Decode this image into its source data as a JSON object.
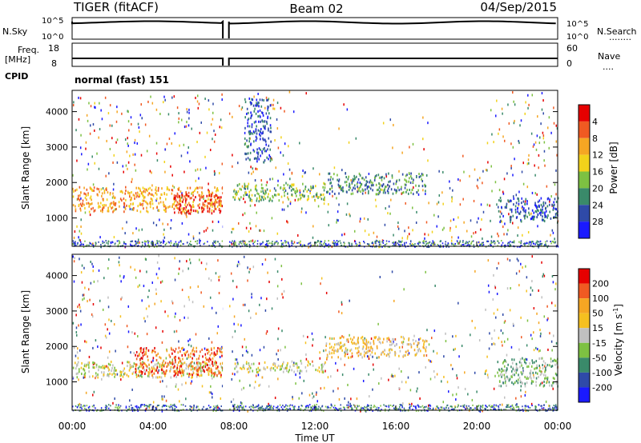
{
  "header": {
    "radar": "TIGER (fitACF)",
    "beam": "Beam 02",
    "date": "04/Sep/2015"
  },
  "nsky_panel": {
    "left_label": "N.Sky",
    "left_ticks": [
      "10^5",
      "10^0"
    ],
    "right_ticks": [
      "10^5",
      "10^0"
    ],
    "right_label": "N.Search",
    "right_legend": "........"
  },
  "freq_panel": {
    "left_label_line1": "Freq.",
    "left_label_line2": "[MHz]",
    "left_ticks": [
      "18",
      "8"
    ],
    "right_ticks": [
      "60",
      "0"
    ],
    "right_label": "Nave",
    "right_legend": "....",
    "cpid_label": "CPID",
    "cpid_text": "normal (fast) 151"
  },
  "chart_data": [
    {
      "type": "heatmap",
      "name": "power",
      "ylabel": "Slant Range [km]",
      "ylim": [
        200,
        4600
      ],
      "yticks": [
        "1000",
        "2000",
        "3000",
        "4000"
      ],
      "yticks_values": [
        1000,
        2000,
        3000,
        4000
      ],
      "colorbar_label": "Power [dB]",
      "colorbar_ticks": [
        "4",
        "8",
        "12",
        "16",
        "20",
        "24",
        "28"
      ],
      "colorbar_colors": [
        "#1a1aff",
        "#2f4aa8",
        "#3a8a6a",
        "#7dc142",
        "#f2d21b",
        "#f5a623",
        "#f05a22",
        "#e60000"
      ],
      "bands": [
        {
          "t0": 0.0,
          "t1": 7.6,
          "r0": 1200,
          "r1": 1900,
          "level": 5
        },
        {
          "t0": 5.0,
          "t1": 7.4,
          "r0": 1150,
          "r1": 1700,
          "level": 7
        },
        {
          "t0": 7.9,
          "t1": 12.5,
          "r0": 1500,
          "r1": 2000,
          "level": 3
        },
        {
          "t0": 12.5,
          "t1": 17.5,
          "r0": 1700,
          "r1": 2300,
          "level": 2
        },
        {
          "t0": 21.0,
          "t1": 24.0,
          "r0": 900,
          "r1": 1600,
          "level": 1
        },
        {
          "t0": 8.5,
          "t1": 9.8,
          "r0": 2600,
          "r1": 4400,
          "level": 1
        }
      ]
    },
    {
      "type": "heatmap",
      "name": "velocity",
      "ylabel": "Slant Range [km]",
      "ylim": [
        200,
        4600
      ],
      "yticks": [
        "1000",
        "2000",
        "3000",
        "4000"
      ],
      "yticks_values": [
        1000,
        2000,
        3000,
        4000
      ],
      "colorbar_label": "Velocity [m s",
      "colorbar_label_sup": "-1",
      "colorbar_label_end": "]",
      "colorbar_ticks": [
        "200",
        "100",
        "50",
        "15",
        "-15",
        "-50",
        "-100",
        "-200"
      ],
      "colorbar_colors": [
        "#1a1aff",
        "#2f4aa8",
        "#3a8a6a",
        "#7dc142",
        "#c0c0c0",
        "#f5c020",
        "#f5a623",
        "#f05a22",
        "#e60000"
      ],
      "bands": [
        {
          "t0": 0.0,
          "t1": 7.6,
          "r0": 1150,
          "r1": 1600,
          "level": 4
        },
        {
          "t0": 3.0,
          "t1": 7.6,
          "r0": 1200,
          "r1": 2000,
          "level": 7
        },
        {
          "t0": 7.9,
          "t1": 12.5,
          "r0": 1300,
          "r1": 1600,
          "level": 4
        },
        {
          "t0": 12.5,
          "t1": 17.5,
          "r0": 1700,
          "r1": 2300,
          "level": 5
        },
        {
          "t0": 21.0,
          "t1": 24.0,
          "r0": 900,
          "r1": 1700,
          "level": 3
        }
      ]
    }
  ],
  "xaxis": {
    "ticks": [
      "00:00",
      "04:00",
      "08:00",
      "12:00",
      "16:00",
      "20:00",
      "00:00"
    ],
    "tick_hours": [
      0,
      4,
      8,
      12,
      16,
      20,
      24
    ],
    "label": "Time UT",
    "xlim": [
      0,
      24
    ],
    "gap_start_hours": 7.45,
    "gap_end_hours": 7.75
  }
}
